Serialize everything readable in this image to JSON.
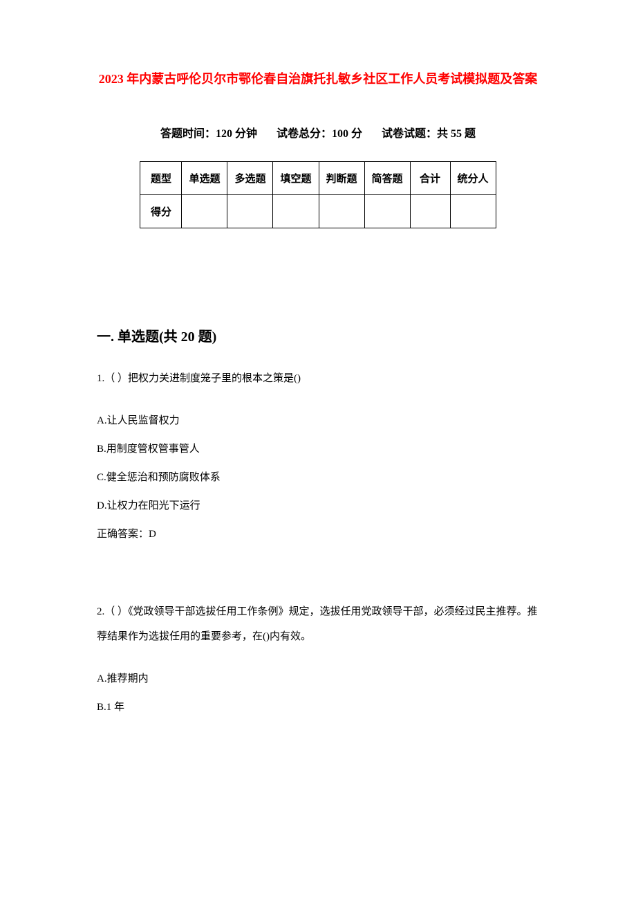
{
  "title": "2023 年内蒙古呼伦贝尔市鄂伦春自治旗托扎敏乡社区工作人员考试模拟题及答案",
  "info": {
    "time": "答题时间：120 分钟",
    "total": "试卷总分：100 分",
    "count": "试卷试题：共 55 题"
  },
  "table": {
    "headers": [
      "题型",
      "单选题",
      "多选题",
      "填空题",
      "判断题",
      "简答题",
      "合计",
      "统分人"
    ],
    "row_label": "得分",
    "header_fontsize": 15,
    "border_color": "#000000",
    "cell_padding": 12
  },
  "section1": {
    "heading": "一. 单选题(共 20 题)",
    "q1": {
      "text": "1.（ ）把权力关进制度笼子里的根本之策是()",
      "opts": {
        "a": "A.让人民监督权力",
        "b": "B.用制度管权管事管人",
        "c": "C.健全惩治和预防腐败体系",
        "d": "D.让权力在阳光下运行"
      },
      "answer": "正确答案：D"
    },
    "q2": {
      "text": "2.（ ）《党政领导干部选拔任用工作条例》规定，选拔任用党政领导干部，必须经过民主推荐。推荐结果作为选拔任用的重要参考，在()内有效。",
      "opts": {
        "a": "A.推荐期内",
        "b": "B.1 年"
      }
    }
  },
  "colors": {
    "title_color": "#ff0000",
    "text_color": "#000000",
    "background": "#ffffff"
  }
}
